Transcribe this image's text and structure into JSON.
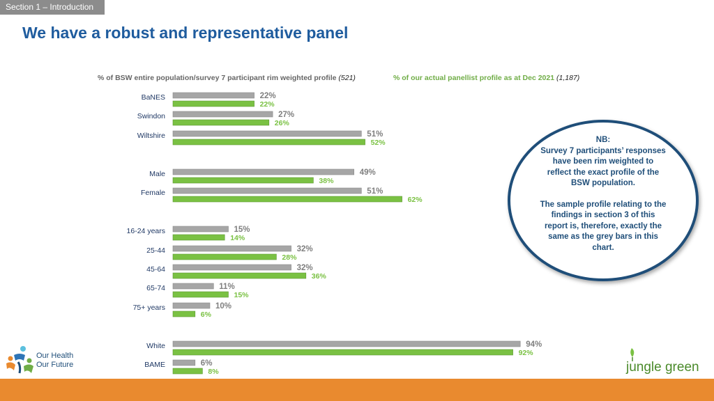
{
  "section_tab": "Section 1 – Introduction",
  "title": "We have a robust and representative panel",
  "legend": {
    "grey_label": "% of BSW entire population/survey 7 participant rim weighted profile",
    "grey_n": "(521)",
    "green_label": "% of our actual panellist profile as at Dec 2021",
    "green_n": "(1,187)"
  },
  "nb": {
    "line1": "NB:",
    "line2": "Survey 7 participants’ responses have been rim weighted to reflect the exact profile of the BSW population.",
    "line3": "The sample profile relating to the findings in section 3 of this report is, therefore, exactly the same as the grey bars in this chart."
  },
  "logos": {
    "ohof_line1": "Our Health",
    "ohof_line2": "Our Future",
    "jungle_green": "jungle green"
  },
  "colors": {
    "grey_bar": "#a6a6a6",
    "green_bar": "#7ac143",
    "title_blue": "#1f5c9e",
    "nb_border": "#1f4e79",
    "footer_orange": "#e98a2f"
  },
  "chart_data": {
    "type": "bar",
    "orientation": "horizontal",
    "unit": "%",
    "categories": [
      "BaNES",
      "Swindon",
      "Wiltshire",
      "Male",
      "Female",
      "16-24 years",
      "25-44",
      "45-64",
      "65-74",
      "75+ years",
      "White",
      "BAME"
    ],
    "series": [
      {
        "name": "% of BSW entire population/survey 7 participant rim weighted profile (521)",
        "color": "#a6a6a6",
        "values": [
          22,
          27,
          51,
          49,
          51,
          15,
          32,
          32,
          11,
          10,
          94,
          6
        ]
      },
      {
        "name": "% of our actual panellist profile as at Dec 2021 (1,187)",
        "color": "#7ac143",
        "values": [
          22,
          26,
          52,
          38,
          62,
          14,
          28,
          36,
          15,
          6,
          92,
          8
        ]
      }
    ],
    "xlim": [
      0,
      100
    ],
    "grid": false,
    "legend_placement": "top"
  }
}
